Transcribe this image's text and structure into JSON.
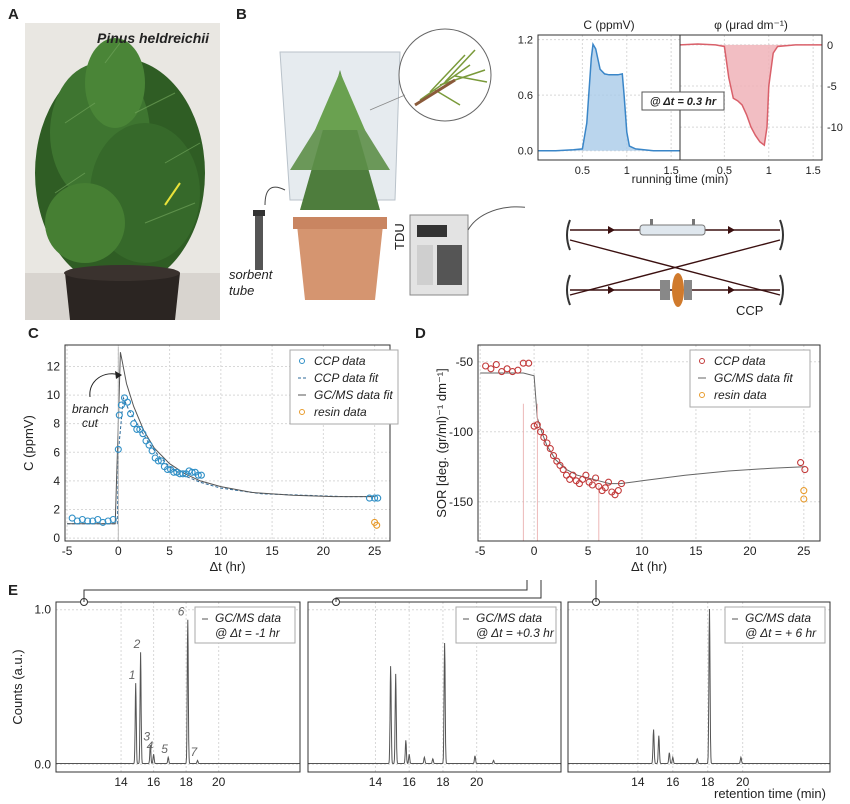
{
  "panels": {
    "a": "A",
    "b": "B",
    "c": "C",
    "d": "D",
    "e": "E"
  },
  "photo": {
    "species": "Pinus heldreichii"
  },
  "setup": {
    "sorbent_line1": "sorbent",
    "sorbent_line2": "tube",
    "tdu": "TDU",
    "ccp": "CCP"
  },
  "chart_data": [
    {
      "id": "B-inset-C",
      "type": "area",
      "title": "C (ppmV)",
      "xlabel": "running time (min)",
      "xlim": [
        0,
        1.6
      ],
      "ylim": [
        -0.1,
        1.25
      ],
      "xticks": [
        "0.5",
        "1",
        "1.5"
      ],
      "yticks": [
        "0.0",
        "0.6",
        "1.2"
      ],
      "annotation": "@ Δt = 0.3 hr",
      "color": "#3a86c8",
      "x": [
        0,
        0.2,
        0.4,
        0.5,
        0.55,
        0.6,
        0.62,
        0.65,
        0.7,
        0.75,
        0.8,
        0.85,
        0.9,
        0.95,
        0.97,
        1.0,
        1.03,
        1.1,
        1.3,
        1.6
      ],
      "y": [
        0.0,
        0.0,
        0.01,
        0.02,
        0.3,
        1.0,
        1.15,
        1.1,
        0.88,
        0.83,
        0.82,
        0.82,
        0.82,
        0.83,
        0.6,
        0.2,
        0.05,
        0.02,
        0.0,
        0.0
      ]
    },
    {
      "id": "B-inset-phi",
      "type": "area",
      "title": "φ (μrad dm⁻¹)",
      "xlim": [
        0,
        1.6
      ],
      "ylim": [
        -14,
        1.2
      ],
      "xticks": [
        "0.5",
        "1",
        "1.5"
      ],
      "yticks": [
        "0",
        "-5",
        "-10"
      ],
      "color": "#d9606a",
      "x": [
        0,
        0.2,
        0.4,
        0.5,
        0.55,
        0.6,
        0.65,
        0.7,
        0.75,
        0.8,
        0.85,
        0.9,
        0.95,
        0.98,
        1.0,
        1.05,
        1.1,
        1.3,
        1.6
      ],
      "y": [
        0,
        0.1,
        0,
        -0.2,
        -4,
        -6.5,
        -6.8,
        -7.3,
        -8.5,
        -10,
        -11,
        -11.8,
        -12.2,
        -10,
        -5,
        -1,
        -0.2,
        0,
        0
      ]
    },
    {
      "id": "C",
      "type": "scatter",
      "xlabel": "Δt (hr)",
      "ylabel": "C (ppmV)",
      "xlim": [
        -5.2,
        26.5
      ],
      "ylim": [
        -0.2,
        13.5
      ],
      "xticks": [
        "-5",
        "0",
        "5",
        "10",
        "15",
        "20",
        "25"
      ],
      "yticks": [
        "0",
        "2",
        "4",
        "6",
        "8",
        "10",
        "12"
      ],
      "legend": [
        "CCP data",
        "CCP data fit",
        "GC/MS data fit",
        "resin data"
      ],
      "legend_position": "top-right",
      "annotation": "branch cut",
      "series": [
        {
          "name": "CCP data",
          "color": "#2f8fc6",
          "x": [
            -4.5,
            -4,
            -3.5,
            -3,
            -2.5,
            -2,
            -1.5,
            -1,
            -0.5,
            0,
            0.1,
            0.3,
            0.6,
            0.9,
            1.2,
            1.5,
            1.8,
            2.1,
            2.4,
            2.7,
            3.0,
            3.3,
            3.6,
            3.9,
            4.2,
            4.5,
            4.8,
            5.1,
            5.4,
            5.7,
            6.0,
            6.3,
            6.6,
            6.9,
            7.2,
            7.5,
            7.8,
            8.1,
            24.5,
            25,
            25.3
          ],
          "y": [
            1.4,
            1.2,
            1.3,
            1.2,
            1.2,
            1.3,
            1.1,
            1.2,
            1.3,
            6.2,
            8.6,
            9.3,
            9.8,
            9.5,
            8.7,
            8.0,
            7.6,
            7.6,
            7.3,
            6.8,
            6.5,
            6.1,
            5.6,
            5.4,
            5.4,
            5.0,
            4.8,
            4.8,
            4.6,
            4.6,
            4.5,
            4.5,
            4.5,
            4.7,
            4.6,
            4.6,
            4.4,
            4.4,
            2.8,
            2.8,
            2.8
          ]
        },
        {
          "name": "CCP data fit",
          "x": [
            -5,
            -0.1,
            0,
            0.5,
            1,
            2,
            3,
            4,
            5,
            6,
            8,
            10,
            14,
            18,
            22,
            25
          ],
          "y": [
            1.0,
            1.0,
            6,
            9.8,
            9.0,
            7.8,
            6.6,
            5.7,
            5.0,
            4.5,
            3.9,
            3.5,
            3.1,
            3.0,
            2.9,
            2.9
          ]
        },
        {
          "name": "GC/MS data fit",
          "x": [
            -5,
            -0.3,
            0,
            0.2,
            0.4,
            0.8,
            1.5,
            2.5,
            3.5,
            5,
            6.5,
            8,
            10,
            13,
            17,
            21,
            25
          ],
          "y": [
            1.0,
            1.0,
            8,
            13.0,
            12.3,
            10.8,
            9.2,
            7.5,
            6.3,
            5.2,
            4.5,
            4.0,
            3.6,
            3.2,
            3.0,
            2.9,
            2.9
          ]
        },
        {
          "name": "resin data",
          "color": "#e89b2c",
          "x": [
            25.0,
            25.2
          ],
          "y": [
            1.1,
            0.9
          ]
        }
      ]
    },
    {
      "id": "D",
      "type": "scatter",
      "xlabel": "Δt (hr)",
      "ylabel": "SOR [deg. (gr/ml)⁻¹ dm⁻¹]",
      "xlim": [
        -5.2,
        26.5
      ],
      "ylim": [
        -178,
        -38
      ],
      "xticks": [
        "-5",
        "0",
        "5",
        "10",
        "15",
        "20",
        "25"
      ],
      "yticks": [
        "-50",
        "-100",
        "-150"
      ],
      "legend": [
        "CCP data",
        "GC/MS data fit",
        "resin data"
      ],
      "legend_position": "top-right",
      "series": [
        {
          "name": "CCP data",
          "color": "#c23a3a",
          "x": [
            -4.5,
            -4,
            -3.5,
            -3,
            -2.5,
            -2,
            -1.5,
            -1,
            -0.5,
            0,
            0.3,
            0.6,
            0.9,
            1.2,
            1.5,
            1.8,
            2.1,
            2.4,
            2.7,
            3.0,
            3.3,
            3.6,
            3.9,
            4.2,
            4.5,
            4.8,
            5.1,
            5.4,
            5.7,
            6.0,
            6.3,
            6.6,
            6.9,
            7.2,
            7.5,
            7.8,
            8.1,
            24.7,
            25.1
          ],
          "y": [
            -53,
            -55,
            -52,
            -57,
            -55,
            -57,
            -56,
            -51,
            -51,
            -96,
            -95,
            -100,
            -104,
            -108,
            -112,
            -117,
            -121,
            -124,
            -127,
            -131,
            -134,
            -131,
            -135,
            -137,
            -134,
            -131,
            -136,
            -138,
            -133,
            -139,
            -142,
            -140,
            -136,
            -143,
            -145,
            -142,
            -137,
            -122,
            -127
          ]
        },
        {
          "name": "GC/MS data fit",
          "x": [
            -5,
            -1,
            0,
            0.3,
            0.7,
            1.2,
            2,
            3,
            4,
            5,
            6,
            7,
            8,
            10,
            14,
            18,
            22,
            25
          ],
          "y": [
            -58,
            -58,
            -60,
            -90,
            -100,
            -110,
            -120,
            -127,
            -131,
            -133,
            -135,
            -137,
            -137,
            -135,
            -131,
            -128,
            -126,
            -125
          ]
        },
        {
          "name": "resin data",
          "color": "#e89b2c",
          "x": [
            25.0,
            25.0
          ],
          "y": [
            -142,
            -148
          ]
        }
      ]
    },
    {
      "id": "E1",
      "type": "line",
      "ylabel": "Counts (a.u.)",
      "xlim": [
        10,
        25
      ],
      "ylim": [
        -0.05,
        1.05
      ],
      "xticks": [
        "14",
        "16",
        "18",
        "20"
      ],
      "yticks": [
        "0.0",
        "1.0"
      ],
      "legend": [
        "GC/MS data @ Δt = -1 hr"
      ],
      "peaks": [
        {
          "x": 14.9,
          "h": 0.52,
          "label": "1"
        },
        {
          "x": 15.2,
          "h": 0.72,
          "label": "2"
        },
        {
          "x": 15.8,
          "h": 0.12,
          "label": "3"
        },
        {
          "x": 16.0,
          "h": 0.06,
          "label": "4"
        },
        {
          "x": 16.9,
          "h": 0.04,
          "label": "5"
        },
        {
          "x": 18.1,
          "h": 0.93,
          "label": "6"
        },
        {
          "x": 18.7,
          "h": 0.02,
          "label": "7"
        }
      ]
    },
    {
      "id": "E2",
      "type": "line",
      "xlim": [
        10,
        25
      ],
      "ylim": [
        -0.05,
        1.05
      ],
      "xticks": [
        "14",
        "16",
        "18",
        "20"
      ],
      "legend": [
        "GC/MS data @ Δt = +0.3 hr"
      ],
      "peaks": [
        {
          "x": 14.9,
          "h": 0.63
        },
        {
          "x": 15.2,
          "h": 0.58
        },
        {
          "x": 15.8,
          "h": 0.15
        },
        {
          "x": 16.0,
          "h": 0.06
        },
        {
          "x": 16.9,
          "h": 0.04
        },
        {
          "x": 17.4,
          "h": 0.03
        },
        {
          "x": 18.1,
          "h": 0.78
        },
        {
          "x": 19.9,
          "h": 0.05
        },
        {
          "x": 21,
          "h": 0.02
        }
      ]
    },
    {
      "id": "E3",
      "type": "line",
      "xlabel": "retention time (min)",
      "xlim": [
        10,
        25
      ],
      "ylim": [
        -0.05,
        1.05
      ],
      "xticks": [
        "14",
        "16",
        "18",
        "20"
      ],
      "legend": [
        "GC/MS data @ Δt = + 6 hr"
      ],
      "peaks": [
        {
          "x": 14.9,
          "h": 0.22
        },
        {
          "x": 15.2,
          "h": 0.18
        },
        {
          "x": 15.8,
          "h": 0.07
        },
        {
          "x": 16.0,
          "h": 0.04
        },
        {
          "x": 17.4,
          "h": 0.03
        },
        {
          "x": 18.1,
          "h": 1.0
        },
        {
          "x": 19.9,
          "h": 0.04
        }
      ]
    }
  ]
}
